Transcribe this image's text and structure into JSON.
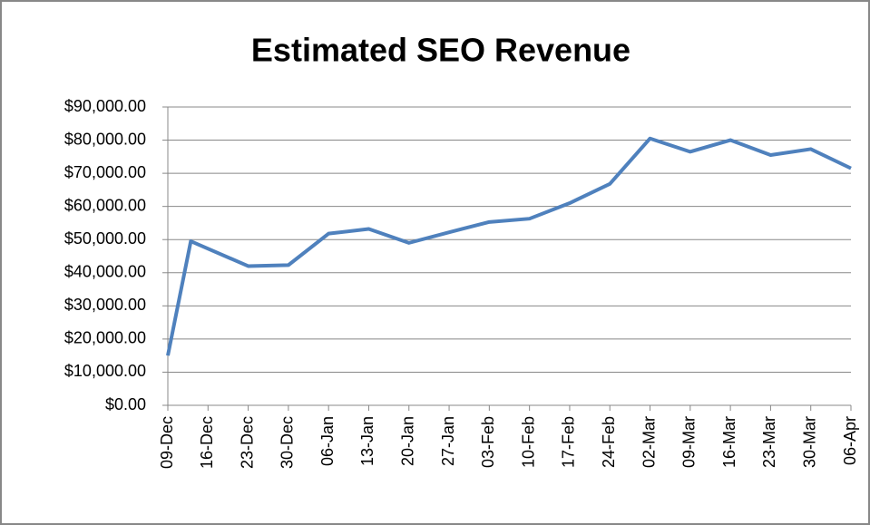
{
  "chart_data": {
    "type": "line",
    "title": "Estimated SEO Revenue",
    "x": [
      0,
      4,
      14,
      21,
      28,
      35,
      42,
      49,
      56,
      63,
      70,
      77,
      84,
      91,
      98,
      105,
      112,
      119
    ],
    "series": [
      {
        "name": "Estimated SEO Revenue",
        "color": "#4f81bd",
        "values": [
          15000,
          49500,
          42000,
          42300,
          51800,
          53200,
          49000,
          52200,
          55300,
          56300,
          61000,
          66800,
          80500,
          76500,
          80000,
          75500,
          77300,
          71500
        ]
      }
    ],
    "xlim": [
      0,
      119
    ],
    "xticks": [
      {
        "value": 0,
        "label": "09-Dec"
      },
      {
        "value": 7,
        "label": "16-Dec"
      },
      {
        "value": 14,
        "label": "23-Dec"
      },
      {
        "value": 21,
        "label": "30-Dec"
      },
      {
        "value": 28,
        "label": "06-Jan"
      },
      {
        "value": 35,
        "label": "13-Jan"
      },
      {
        "value": 42,
        "label": "20-Jan"
      },
      {
        "value": 49,
        "label": "27-Jan"
      },
      {
        "value": 56,
        "label": "03-Feb"
      },
      {
        "value": 63,
        "label": "10-Feb"
      },
      {
        "value": 70,
        "label": "17-Feb"
      },
      {
        "value": 77,
        "label": "24-Feb"
      },
      {
        "value": 84,
        "label": "02-Mar"
      },
      {
        "value": 91,
        "label": "09-Mar"
      },
      {
        "value": 98,
        "label": "16-Mar"
      },
      {
        "value": 105,
        "label": "23-Mar"
      },
      {
        "value": 112,
        "label": "30-Mar"
      },
      {
        "value": 119,
        "label": "06-Apr"
      }
    ],
    "ylim": [
      0,
      90000
    ],
    "yticks": [
      {
        "value": 0,
        "label": "$0.00"
      },
      {
        "value": 10000,
        "label": "$10,000.00"
      },
      {
        "value": 20000,
        "label": "$20,000.00"
      },
      {
        "value": 30000,
        "label": "$30,000.00"
      },
      {
        "value": 40000,
        "label": "$40,000.00"
      },
      {
        "value": 50000,
        "label": "$50,000.00"
      },
      {
        "value": 60000,
        "label": "$60,000.00"
      },
      {
        "value": 70000,
        "label": "$70,000.00"
      },
      {
        "value": 80000,
        "label": "$80,000.00"
      },
      {
        "value": 90000,
        "label": "$90,000.00"
      }
    ],
    "grid": true
  }
}
